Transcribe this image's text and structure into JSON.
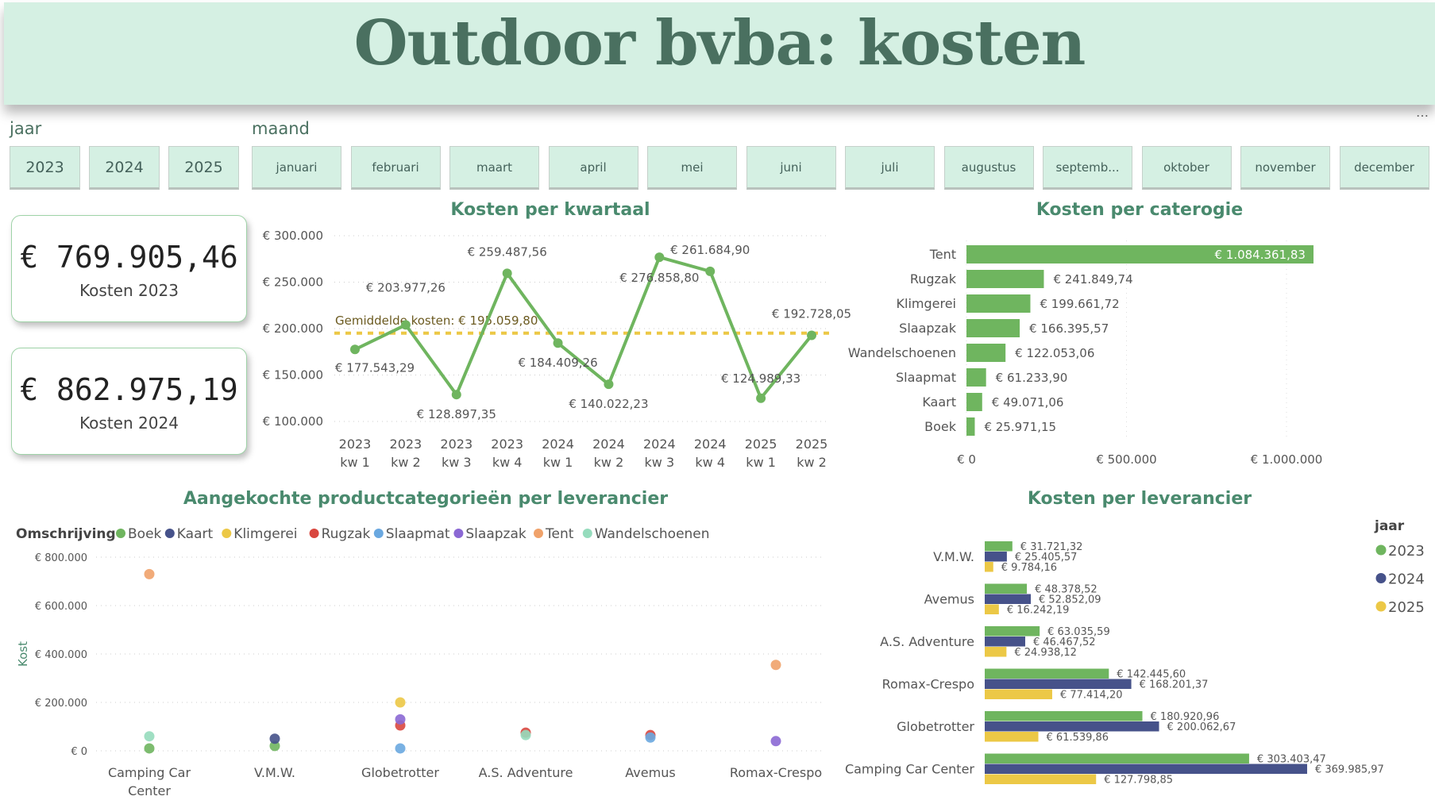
{
  "header": {
    "title": "Outdoor bvba: kosten"
  },
  "filters": {
    "year_label": "jaar",
    "years": [
      "2023",
      "2024",
      "2025"
    ],
    "month_label": "maand",
    "months": [
      "januari",
      "februari",
      "maart",
      "april",
      "mei",
      "juni",
      "juli",
      "augustus",
      "septemb...",
      "oktober",
      "november",
      "december"
    ]
  },
  "kpis": [
    {
      "value": "€ 769.905,46",
      "label": "Kosten 2023"
    },
    {
      "value": "€ 862.975,19",
      "label": "Kosten 2024"
    }
  ],
  "more_icon": "…",
  "colors": {
    "green": "#6fb55f",
    "navy": "#46528a",
    "yellow": "#ecc846",
    "avg": "#ecc846"
  },
  "chart_data": [
    {
      "type": "line",
      "title": "Kosten per kwartaal",
      "categories": [
        "2023 kw 1",
        "2023 kw 2",
        "2023 kw 3",
        "2023 kw 4",
        "2024 kw 1",
        "2024 kw 2",
        "2024 kw 3",
        "2024 kw 4",
        "2025 kw 1",
        "2025 kw 2"
      ],
      "values": [
        177543.29,
        203977.26,
        128897.35,
        259487.56,
        184409.26,
        140022.23,
        276858.8,
        261684.9,
        124989.33,
        192728.05
      ],
      "labels": [
        "€ 177.543,29",
        "€ 203.977,26",
        "€ 128.897,35",
        "€ 259.487,56",
        "€ 184.409,26",
        "€ 140.022,23",
        "€ 276.858,80",
        "€ 261.684,90",
        "€ 124.989,33",
        "€ 192.728,05"
      ],
      "average": 195059.8,
      "average_label": "Gemiddelde kosten: € 195.059,80",
      "yticks": [
        "€ 300.000",
        "€ 250.000",
        "€ 200.000",
        "€ 150.000",
        "€ 100.000"
      ],
      "ylim": [
        100000,
        300000
      ],
      "grid": true
    },
    {
      "type": "bar",
      "title": "Kosten per caterogie",
      "orientation": "horizontal",
      "categories": [
        "Tent",
        "Rugzak",
        "Klimgerei",
        "Slaapzak",
        "Wandelschoenen",
        "Slaapmat",
        "Kaart",
        "Boek"
      ],
      "values": [
        1084361.83,
        241849.74,
        199661.72,
        166395.57,
        122053.06,
        61233.9,
        49071.06,
        25971.15
      ],
      "labels": [
        "€ 1.084.361,83",
        "€ 241.849,74",
        "€ 199.661,72",
        "€ 166.395,57",
        "€ 122.053,06",
        "€ 61.233,90",
        "€ 49.071,06",
        "€ 25.971,15"
      ],
      "xticks": [
        "€ 0",
        "€ 500.000",
        "€ 1.000.000"
      ],
      "xlim": [
        0,
        1150000
      ]
    },
    {
      "type": "scatter",
      "title": "Aangekochte productcategorieën per leverancier",
      "legend_title": "Omschrijving",
      "ylabel": "Kost",
      "categories": [
        "Camping Car Center",
        "V.M.W.",
        "Globetrotter",
        "A.S. Adventure",
        "Avemus",
        "Romax-Crespo"
      ],
      "series": [
        {
          "name": "Boek",
          "color": "#6fb55f",
          "points": [
            [
              0,
              10000
            ],
            [
              1,
              20000
            ]
          ]
        },
        {
          "name": "Kaart",
          "color": "#46528a",
          "points": [
            [
              1,
              50000
            ]
          ]
        },
        {
          "name": "Klimgerei",
          "color": "#ecc846",
          "points": [
            [
              2,
              200000
            ]
          ]
        },
        {
          "name": "Rugzak",
          "color": "#d9473f",
          "points": [
            [
              2,
              105000
            ],
            [
              3,
              75000
            ],
            [
              4,
              65000
            ]
          ]
        },
        {
          "name": "Slaapmat",
          "color": "#6aa8e0",
          "points": [
            [
              2,
              10000
            ],
            [
              4,
              55000
            ]
          ]
        },
        {
          "name": "Slaapzak",
          "color": "#8b68d4",
          "points": [
            [
              2,
              130000
            ],
            [
              5,
              40000
            ]
          ]
        },
        {
          "name": "Tent",
          "color": "#f0a26a",
          "points": [
            [
              0,
              730000
            ],
            [
              5,
              355000
            ]
          ]
        },
        {
          "name": "Wandelschoenen",
          "color": "#96dcbd",
          "points": [
            [
              0,
              60000
            ],
            [
              3,
              65000
            ]
          ]
        }
      ],
      "yticks": [
        "€ 800.000",
        "€ 600.000",
        "€ 400.000",
        "€ 200.000",
        "€ 0"
      ],
      "ylim": [
        0,
        800000
      ],
      "legend": "top"
    },
    {
      "type": "bar",
      "title": "Kosten per leverancier",
      "orientation": "horizontal",
      "legend_title": "jaar",
      "legend": "right",
      "categories": [
        "V.M.W.",
        "Avemus",
        "A.S. Adventure",
        "Romax-Crespo",
        "Globetrotter",
        "Camping Car Center"
      ],
      "series": [
        {
          "name": "2023",
          "color": "#6fb55f",
          "values": [
            31721.32,
            48378.52,
            63035.59,
            142445.6,
            180920.96,
            303403.47
          ],
          "labels": [
            "€ 31.721,32",
            "€ 48.378,52",
            "€ 63.035,59",
            "€ 142.445,60",
            "€ 180.920,96",
            "€ 303.403,47"
          ]
        },
        {
          "name": "2024",
          "color": "#46528a",
          "values": [
            25405.57,
            52852.09,
            46467.52,
            168201.37,
            200062.67,
            369985.97
          ],
          "labels": [
            "€ 25.405,57",
            "€ 52.852,09",
            "€ 46.467,52",
            "€ 168.201,37",
            "€ 200.062,67",
            "€ 369.985,97"
          ]
        },
        {
          "name": "2025",
          "color": "#ecc846",
          "values": [
            9784.16,
            16242.19,
            24938.12,
            77414.2,
            61539.86,
            127798.85
          ],
          "labels": [
            "€ 9.784,16",
            "€ 16.242,19",
            "€ 24.938,12",
            "€ 77.414,20",
            "€ 61.539,86",
            "€ 127.798,85"
          ]
        }
      ]
    }
  ]
}
